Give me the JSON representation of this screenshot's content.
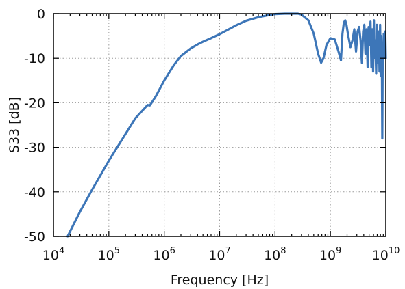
{
  "chart_data": {
    "type": "line",
    "title": "",
    "xlabel": "Frequency [Hz]",
    "ylabel": "S33 [dB]",
    "xscale": "log",
    "xlim": [
      10000,
      10000000000
    ],
    "ylim": [
      -50,
      0
    ],
    "grid": true,
    "legend": "none",
    "x_tick_labels": [
      {
        "value": 10000,
        "base": "10",
        "exp": "4"
      },
      {
        "value": 100000,
        "base": "10",
        "exp": "5"
      },
      {
        "value": 1000000,
        "base": "10",
        "exp": "6"
      },
      {
        "value": 10000000,
        "base": "10",
        "exp": "7"
      },
      {
        "value": 100000000,
        "base": "10",
        "exp": "8"
      },
      {
        "value": 1000000000,
        "base": "10",
        "exp": "9"
      },
      {
        "value": 10000000000,
        "base": "10",
        "exp": "10"
      }
    ],
    "y_tick_labels": [
      {
        "value": 0,
        "label": "0"
      },
      {
        "value": -10,
        "label": "-10"
      },
      {
        "value": -20,
        "label": "-20"
      },
      {
        "value": -30,
        "label": "-30"
      },
      {
        "value": -40,
        "label": "-40"
      },
      {
        "value": -50,
        "label": "-50"
      }
    ],
    "series": [
      {
        "color": "#3d76b8",
        "x": [
          18000,
          30000,
          50000,
          100000,
          200000,
          300000,
          500000,
          550000,
          700000,
          1000000,
          1500000,
          2000000,
          3000000,
          4000000,
          5000000,
          7000000,
          10000000,
          20000000,
          30000000,
          50000000,
          80000000,
          100000000,
          150000000,
          200000000,
          260000000,
          300000000,
          400000000,
          500000000,
          600000000,
          680000000,
          750000000,
          850000000,
          1000000000,
          1200000000,
          1400000000,
          1550000000,
          1650000000,
          1750000000,
          1850000000,
          1950000000,
          2100000000,
          2300000000,
          2500000000,
          2700000000,
          2900000000,
          3100000000,
          3300000000,
          3500000000,
          3700000000,
          3900000000,
          4100000000,
          4300000000,
          4500000000,
          4700000000,
          4900000000,
          5100000000,
          5300000000,
          5500000000,
          5700000000,
          5900000000,
          6100000000,
          6300000000,
          6500000000,
          6700000000,
          6900000000,
          7100000000,
          7300000000,
          7500000000,
          7700000000,
          7900000000,
          8100000000,
          8300000000,
          8500000000,
          8650000000,
          8800000000,
          8900000000,
          9000000000,
          9200000000,
          9400000000,
          9600000000,
          9800000000,
          10000000000
        ],
        "y": [
          -50,
          -44.5,
          -39.5,
          -33,
          -27,
          -23.5,
          -20.5,
          -20.6,
          -18.6,
          -15,
          -11.5,
          -9.5,
          -7.8,
          -6.9,
          -6.3,
          -5.5,
          -4.6,
          -2.6,
          -1.6,
          -0.8,
          -0.3,
          -0.1,
          0,
          0,
          0,
          -0.2,
          -1.5,
          -4.5,
          -9,
          -11,
          -10,
          -7,
          -5.5,
          -5.8,
          -8.5,
          -10.5,
          -4.5,
          -2,
          -1.5,
          -2.5,
          -5,
          -7.5,
          -6,
          -3.5,
          -8.5,
          -4,
          -3,
          -6,
          -11,
          -4,
          -2.5,
          -9,
          -3.5,
          -12,
          -3,
          -7,
          -1.8,
          -12,
          -3.5,
          -13,
          -1.5,
          -10,
          -6,
          -13.5,
          -2.5,
          -9,
          -11,
          -4,
          -13,
          -2.5,
          -14,
          -5,
          -11.5,
          -28,
          -9,
          -6.5,
          -11,
          -4.5,
          -10,
          -7,
          -4,
          -10
        ]
      }
    ]
  }
}
